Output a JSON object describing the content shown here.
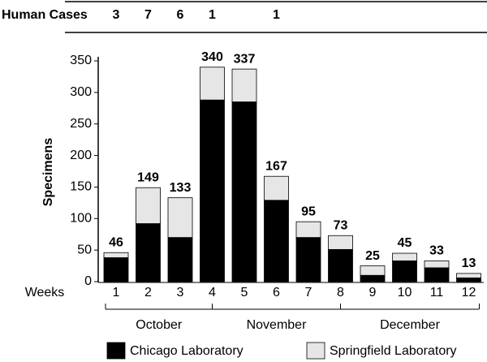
{
  "chart_data": {
    "type": "bar",
    "stacked": true,
    "y_label": "Specimens",
    "x_label": "Weeks",
    "categories": [
      "1",
      "2",
      "3",
      "4",
      "5",
      "6",
      "7",
      "8",
      "9",
      "10",
      "11",
      "12"
    ],
    "series": [
      {
        "name": "Chicago Laboratory",
        "color": "#000000",
        "values": [
          38,
          92,
          70,
          288,
          285,
          129,
          70,
          51,
          10,
          33,
          22,
          6
        ]
      },
      {
        "name": "Springfield Laboratory",
        "color": "#e6e6e6",
        "values": [
          8,
          57,
          63,
          52,
          52,
          38,
          25,
          22,
          15,
          12,
          11,
          7
        ]
      }
    ],
    "totals": [
      46,
      149,
      133,
      340,
      337,
      167,
      95,
      73,
      25,
      45,
      33,
      13
    ],
    "human_cases": {
      "label": "Human Cases",
      "values": [
        3,
        7,
        6,
        1,
        null,
        1,
        null,
        null,
        null,
        null,
        null,
        null
      ]
    },
    "months": [
      "October",
      "November",
      "December"
    ],
    "ylim": [
      0,
      350
    ],
    "yticks": [
      0,
      50,
      100,
      150,
      200,
      250,
      300,
      350
    ]
  }
}
